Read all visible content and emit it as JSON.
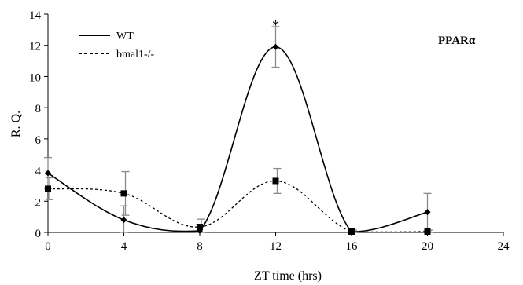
{
  "chart_data": {
    "type": "line",
    "title": "PPARα",
    "xlabel": "ZT time (hrs)",
    "ylabel": "R. Q.",
    "xlim": [
      0,
      24
    ],
    "ylim": [
      0,
      14
    ],
    "xticks": [
      0,
      4,
      8,
      12,
      16,
      20,
      24
    ],
    "yticks": [
      0,
      2,
      4,
      6,
      8,
      10,
      12,
      14
    ],
    "grid": false,
    "legend_position": "top-left",
    "series": [
      {
        "name": "WT",
        "line_style": "solid",
        "marker": "diamond",
        "color": "#000000",
        "x": [
          0,
          4,
          8,
          12,
          16,
          20
        ],
        "y": [
          3.8,
          0.8,
          0.1,
          11.9,
          0.05,
          1.3
        ],
        "error": [
          1.0,
          0.9,
          0.4,
          1.3,
          0.1,
          1.2
        ]
      },
      {
        "name": "bmal1-/-",
        "line_style": "dashed",
        "marker": "square",
        "color": "#000000",
        "x": [
          0,
          4,
          8,
          12,
          16,
          20
        ],
        "y": [
          2.8,
          2.5,
          0.35,
          3.3,
          0.05,
          0.05
        ],
        "error": [
          0.7,
          1.4,
          0.5,
          0.8,
          0.1,
          0.1
        ]
      }
    ],
    "annotations": [
      {
        "text": "*",
        "x": 12,
        "y": 13.3
      }
    ]
  }
}
